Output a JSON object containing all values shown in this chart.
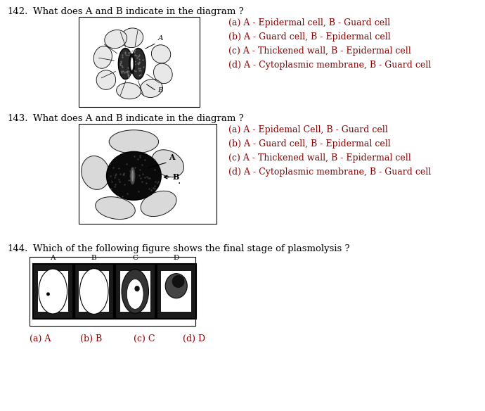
{
  "background_color": "#ffffff",
  "q142": {
    "number": "142.",
    "question": "What does A and B indicate in the diagram ?",
    "options": [
      "(a) A - Epidermal cell, B - Guard cell",
      "(b) A - Guard cell, B - Epidermal cell",
      "(c) A - Thickened wall, B - Epidermal cell",
      "(d) A - Cytoplasmic membrane, B - Guard cell"
    ]
  },
  "q143": {
    "number": "143.",
    "question": "What does A and B indicate in the diagram ?",
    "options": [
      "(a) A - Epidemal Cell, B - Guard cell",
      "(b) A - Guard cell, B - Epidermal cell",
      "(c) A - Thickened wall, B - Epidermal cell",
      "(d) A - Cytoplasmic membrane, B - Guard cell"
    ]
  },
  "q144": {
    "number": "144.",
    "question": "Which of the following figure shows the final stage of plasmolysis ?",
    "options": [
      "(a) A",
      "(b) B",
      "(c) C",
      "(d) D"
    ]
  },
  "text_color": "#000000",
  "option_color": "#8B0000",
  "q_font_size": 9.5,
  "opt_font_size": 9.0,
  "num_font_size": 9.5
}
